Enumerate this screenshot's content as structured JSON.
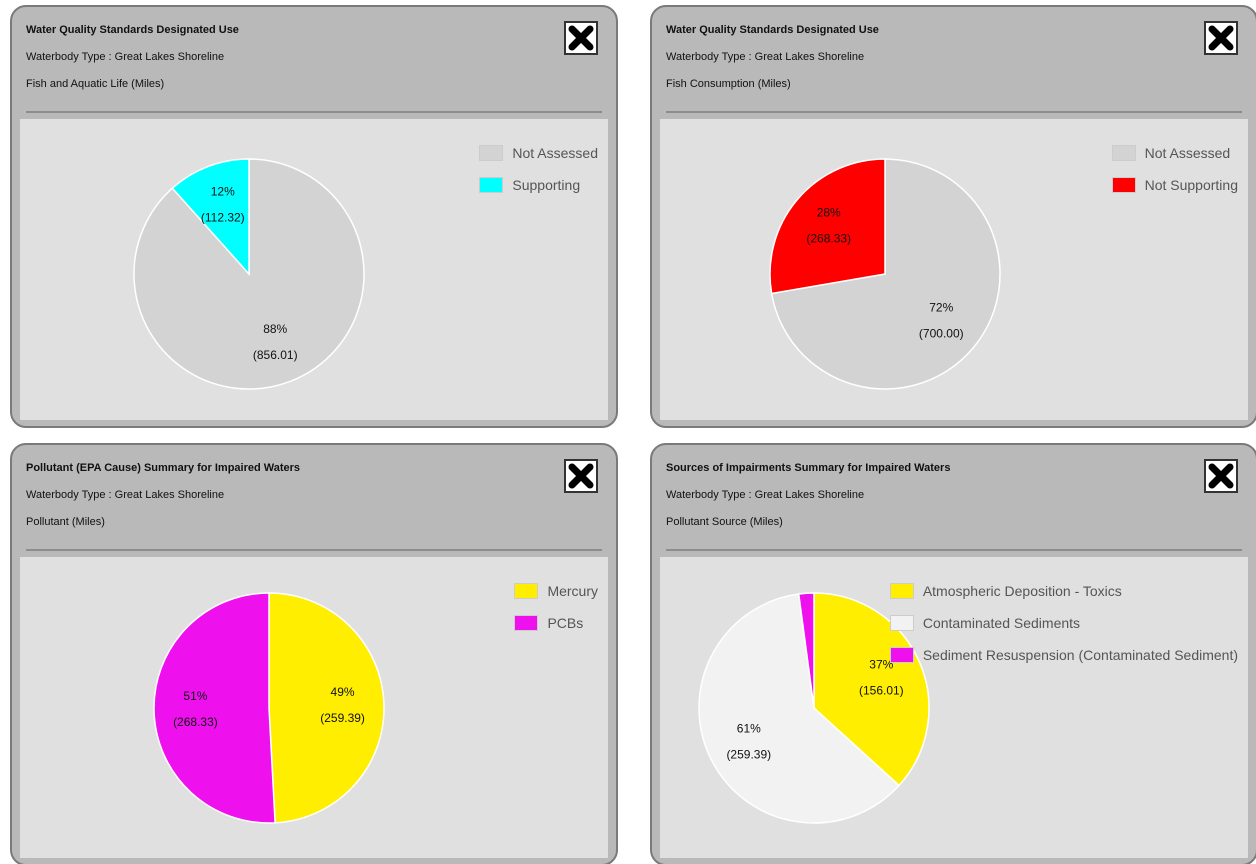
{
  "chart_data": [
    {
      "type": "pie",
      "title": "Water Quality Standards Designated Use",
      "subtitle": "Waterbody Type : Great Lakes Shoreline",
      "measure": "Fish and Aquatic Life (Miles)",
      "categories": [
        "Not Assessed",
        "Supporting"
      ],
      "values": [
        856.01,
        112.32
      ],
      "value_labels": [
        "(856.01)",
        "(112.32)"
      ],
      "percents": [
        88,
        12
      ],
      "percent_labels": [
        "88%",
        "12%"
      ],
      "colors": [
        "#d3d3d3",
        "#00ffff"
      ]
    },
    {
      "type": "pie",
      "title": "Water Quality Standards Designated Use",
      "subtitle": "Waterbody Type : Great Lakes Shoreline",
      "measure": "Fish Consumption (Miles)",
      "categories": [
        "Not Assessed",
        "Not Supporting"
      ],
      "values": [
        700.0,
        268.33
      ],
      "value_labels": [
        "(700.00)",
        "(268.33)"
      ],
      "percents": [
        72,
        28
      ],
      "percent_labels": [
        "72%",
        "28%"
      ],
      "colors": [
        "#d3d3d3",
        "#ff0000"
      ]
    },
    {
      "type": "pie",
      "title": "Pollutant (EPA Cause) Summary for Impaired Waters",
      "subtitle": "Waterbody Type : Great Lakes Shoreline",
      "measure": "Pollutant (Miles)",
      "categories": [
        "Mercury",
        "PCBs"
      ],
      "values": [
        259.39,
        268.33
      ],
      "value_labels": [
        "(259.39)",
        "(268.33)"
      ],
      "percents": [
        49,
        51
      ],
      "percent_labels": [
        "49%",
        "51%"
      ],
      "colors": [
        "#ffee00",
        "#ee11ee"
      ]
    },
    {
      "type": "pie",
      "title": "Sources of Impairments Summary for Impaired Waters",
      "subtitle": "Waterbody Type : Great Lakes Shoreline",
      "measure": "Pollutant Source (Miles)",
      "categories": [
        "Atmospheric Deposition - Toxics",
        "Contaminated Sediments",
        "Sediment Resuspension (Contaminated Sediment)"
      ],
      "values": [
        156.01,
        259.39,
        9
      ],
      "value_labels": [
        "(156.01)",
        "(259.39)",
        null
      ],
      "percents": [
        37,
        61,
        null
      ],
      "percent_labels": [
        "37%",
        "61%",
        null
      ],
      "colors": [
        "#ffee00",
        "#f2f2f2",
        "#ee11ee"
      ]
    }
  ]
}
